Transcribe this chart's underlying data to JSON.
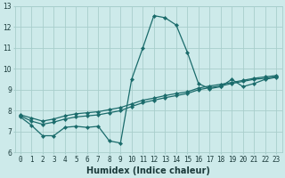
{
  "title": "",
  "xlabel": "Humidex (Indice chaleur)",
  "ylabel": "",
  "bg_color": "#cdeaea",
  "line_color": "#1a6b6b",
  "grid_color": "#a8cecc",
  "series1_x": [
    0,
    1,
    2,
    3,
    4,
    5,
    6,
    7,
    8,
    9,
    10,
    11,
    12,
    13,
    14,
    15,
    16,
    17,
    18,
    19,
    20,
    21,
    22,
    23
  ],
  "series1_y": [
    7.7,
    7.3,
    6.8,
    6.8,
    7.2,
    7.25,
    7.2,
    7.25,
    6.55,
    6.45,
    9.5,
    11.0,
    12.55,
    12.45,
    12.1,
    10.8,
    9.3,
    9.05,
    9.15,
    9.5,
    9.15,
    9.3,
    9.5,
    9.6
  ],
  "series2_x": [
    0,
    1,
    2,
    3,
    4,
    5,
    6,
    7,
    8,
    9,
    10,
    11,
    12,
    13,
    14,
    15,
    16,
    17,
    18,
    19,
    20,
    21,
    22,
    23
  ],
  "series2_y": [
    7.75,
    7.5,
    7.35,
    7.45,
    7.6,
    7.7,
    7.75,
    7.8,
    7.9,
    8.0,
    8.2,
    8.38,
    8.5,
    8.62,
    8.72,
    8.82,
    9.0,
    9.1,
    9.18,
    9.3,
    9.4,
    9.5,
    9.55,
    9.62
  ],
  "series3_x": [
    0,
    1,
    2,
    3,
    4,
    5,
    6,
    7,
    8,
    9,
    10,
    11,
    12,
    13,
    14,
    15,
    16,
    17,
    18,
    19,
    20,
    21,
    22,
    23
  ],
  "series3_y": [
    7.8,
    7.65,
    7.5,
    7.6,
    7.75,
    7.85,
    7.9,
    7.95,
    8.05,
    8.15,
    8.32,
    8.5,
    8.6,
    8.72,
    8.82,
    8.9,
    9.08,
    9.18,
    9.26,
    9.35,
    9.45,
    9.55,
    9.62,
    9.68
  ],
  "xlim": [
    -0.5,
    23.5
  ],
  "ylim": [
    6,
    13
  ],
  "yticks": [
    6,
    7,
    8,
    9,
    10,
    11,
    12,
    13
  ],
  "xticks": [
    0,
    1,
    2,
    3,
    4,
    5,
    6,
    7,
    8,
    9,
    10,
    11,
    12,
    13,
    14,
    15,
    16,
    17,
    18,
    19,
    20,
    21,
    22,
    23
  ],
  "marker": "D",
  "markersize": 2.2,
  "linewidth": 0.9,
  "xlabel_fontsize": 7,
  "tick_fontsize": 5.5
}
